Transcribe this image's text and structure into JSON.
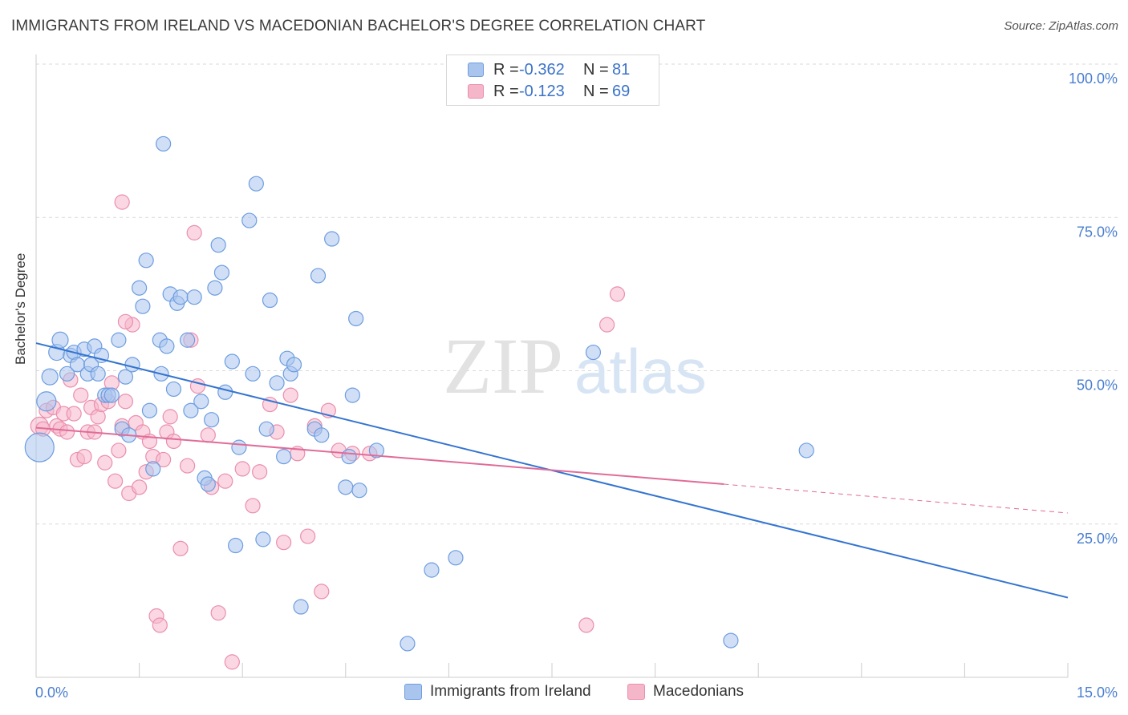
{
  "title": "IMMIGRANTS FROM IRELAND VS MACEDONIAN BACHELOR'S DEGREE CORRELATION CHART",
  "source": "Source: ZipAtlas.com",
  "watermark": {
    "zip": "ZIP",
    "atlas": "atlas"
  },
  "legend": {
    "r_label": "R =",
    "n_label": "N =",
    "entries": [
      {
        "r": "-0.362",
        "n": "81"
      },
      {
        "r": "-0.123",
        "n": "69"
      }
    ]
  },
  "colors": {
    "blue_fill": "#a9c5ee",
    "blue_stroke": "#6d9de0",
    "blue_line": "#3474d0",
    "pink_fill": "#f6b6ca",
    "pink_stroke": "#ea8fad",
    "pink_line": "#e06c98",
    "tick_label": "#4a7fd0",
    "grid": "#d9d9d9"
  },
  "chart_data": {
    "type": "scatter",
    "title": "IMMIGRANTS FROM IRELAND VS MACEDONIAN BACHELOR'S DEGREE CORRELATION CHART",
    "xlabel": "",
    "ylabel": "Bachelor's Degree",
    "xlim": [
      0,
      15
    ],
    "ylim": [
      0,
      100
    ],
    "x_tick_labels": [
      "0.0%",
      "15.0%"
    ],
    "y_ticks": [
      25,
      50,
      75,
      100
    ],
    "y_tick_labels": [
      "25.0%",
      "50.0%",
      "75.0%",
      "100.0%"
    ],
    "grid": true,
    "legend_position": "top-center",
    "series": [
      {
        "name": "Immigrants from Ireland",
        "r": -0.362,
        "n": 81,
        "trend": {
          "x": [
            0,
            15
          ],
          "y": [
            54.5,
            13
          ]
        },
        "points": [
          [
            0.05,
            37.5,
            18
          ],
          [
            0.15,
            45,
            12
          ],
          [
            0.2,
            49,
            10
          ],
          [
            0.3,
            53,
            10
          ],
          [
            0.35,
            55,
            10
          ],
          [
            0.45,
            49.5,
            9
          ],
          [
            0.5,
            52.5,
            9
          ],
          [
            0.55,
            53,
            9
          ],
          [
            0.6,
            51,
            9
          ],
          [
            0.7,
            53.5,
            9
          ],
          [
            0.75,
            49.5,
            9
          ],
          [
            0.8,
            51,
            9
          ],
          [
            0.85,
            54,
            9
          ],
          [
            0.9,
            49.5,
            9
          ],
          [
            0.95,
            52.5,
            9
          ],
          [
            1.0,
            46,
            9
          ],
          [
            1.05,
            46,
            9
          ],
          [
            1.1,
            46,
            9
          ],
          [
            1.2,
            55,
            9
          ],
          [
            1.25,
            40.5,
            9
          ],
          [
            1.3,
            49,
            9
          ],
          [
            1.35,
            39.5,
            9
          ],
          [
            1.4,
            51,
            9
          ],
          [
            1.5,
            63.5,
            9
          ],
          [
            1.55,
            60.5,
            9
          ],
          [
            1.6,
            68,
            9
          ],
          [
            1.65,
            43.5,
            9
          ],
          [
            1.7,
            34,
            9
          ],
          [
            1.8,
            55,
            9
          ],
          [
            1.82,
            49.5,
            9
          ],
          [
            1.85,
            87,
            9
          ],
          [
            1.9,
            54,
            9
          ],
          [
            1.95,
            62.5,
            9
          ],
          [
            2.0,
            47,
            9
          ],
          [
            2.05,
            61,
            9
          ],
          [
            2.1,
            62,
            9
          ],
          [
            2.2,
            55,
            9
          ],
          [
            2.25,
            43.5,
            9
          ],
          [
            2.3,
            62,
            9
          ],
          [
            2.4,
            45,
            9
          ],
          [
            2.45,
            32.5,
            9
          ],
          [
            2.5,
            31.5,
            9
          ],
          [
            2.55,
            42,
            9
          ],
          [
            2.6,
            63.5,
            9
          ],
          [
            2.65,
            70.5,
            9
          ],
          [
            2.7,
            66,
            9
          ],
          [
            2.75,
            46.5,
            9
          ],
          [
            2.85,
            51.5,
            9
          ],
          [
            2.9,
            21.5,
            9
          ],
          [
            2.95,
            37.5,
            9
          ],
          [
            3.1,
            74.5,
            9
          ],
          [
            3.15,
            49.5,
            9
          ],
          [
            3.2,
            80.5,
            9
          ],
          [
            3.3,
            22.5,
            9
          ],
          [
            3.35,
            40.5,
            9
          ],
          [
            3.4,
            61.5,
            9
          ],
          [
            3.5,
            48,
            9
          ],
          [
            3.6,
            36,
            9
          ],
          [
            3.65,
            52,
            9
          ],
          [
            3.7,
            49.5,
            9
          ],
          [
            3.75,
            51,
            9
          ],
          [
            3.85,
            11.5,
            9
          ],
          [
            4.05,
            40.5,
            9
          ],
          [
            4.1,
            65.5,
            9
          ],
          [
            4.15,
            39.5,
            9
          ],
          [
            4.3,
            71.5,
            9
          ],
          [
            4.5,
            31,
            9
          ],
          [
            4.55,
            36,
            9
          ],
          [
            4.6,
            46,
            9
          ],
          [
            4.65,
            58.5,
            9
          ],
          [
            4.7,
            30.5,
            9
          ],
          [
            4.95,
            37,
            9
          ],
          [
            5.4,
            5.5,
            9
          ],
          [
            5.75,
            17.5,
            9
          ],
          [
            6.1,
            19.5,
            9
          ],
          [
            8.1,
            53,
            9
          ],
          [
            11.2,
            37,
            9
          ],
          [
            10.1,
            6,
            9
          ]
        ]
      },
      {
        "name": "Macedonians",
        "r": -0.123,
        "n": 69,
        "trend": {
          "x": [
            0,
            10
          ],
          "y": [
            40.7,
            31.5
          ]
        },
        "trend_ext": {
          "x": [
            10,
            15
          ],
          "y": [
            31.5,
            26.8
          ]
        },
        "points": [
          [
            0.05,
            41,
            11
          ],
          [
            0.1,
            40.5,
            9
          ],
          [
            0.15,
            43.5,
            9
          ],
          [
            0.25,
            44,
            9
          ],
          [
            0.3,
            41,
            9
          ],
          [
            0.35,
            40.5,
            9
          ],
          [
            0.4,
            43,
            9
          ],
          [
            0.45,
            40,
            9
          ],
          [
            0.5,
            48.5,
            9
          ],
          [
            0.55,
            43,
            9
          ],
          [
            0.6,
            35.5,
            9
          ],
          [
            0.65,
            46,
            9
          ],
          [
            0.7,
            36,
            9
          ],
          [
            0.75,
            40,
            9
          ],
          [
            0.8,
            44,
            9
          ],
          [
            0.85,
            40,
            9
          ],
          [
            0.9,
            42.5,
            9
          ],
          [
            0.95,
            44.5,
            9
          ],
          [
            1.0,
            35,
            9
          ],
          [
            1.05,
            45,
            9
          ],
          [
            1.1,
            48,
            9
          ],
          [
            1.15,
            32,
            9
          ],
          [
            1.2,
            37,
            9
          ],
          [
            1.25,
            41,
            9
          ],
          [
            1.3,
            45,
            9
          ],
          [
            1.35,
            30,
            9
          ],
          [
            1.4,
            57.5,
            9
          ],
          [
            1.45,
            41.5,
            9
          ],
          [
            1.5,
            31,
            9
          ],
          [
            1.55,
            40,
            9
          ],
          [
            1.6,
            33.5,
            9
          ],
          [
            1.65,
            38.5,
            9
          ],
          [
            1.7,
            36,
            9
          ],
          [
            1.75,
            10,
            9
          ],
          [
            1.8,
            8.5,
            9
          ],
          [
            1.85,
            35.5,
            9
          ],
          [
            1.9,
            40,
            9
          ],
          [
            1.95,
            42.5,
            9
          ],
          [
            2.0,
            38.5,
            9
          ],
          [
            2.1,
            21,
            9
          ],
          [
            2.2,
            34.5,
            9
          ],
          [
            2.25,
            55,
            9
          ],
          [
            2.3,
            72.5,
            9
          ],
          [
            2.35,
            47.5,
            9
          ],
          [
            2.5,
            39.5,
            9
          ],
          [
            2.55,
            31,
            9
          ],
          [
            2.65,
            10.5,
            9
          ],
          [
            2.75,
            32,
            9
          ],
          [
            2.85,
            2.5,
            9
          ],
          [
            3.0,
            34,
            9
          ],
          [
            3.15,
            28,
            9
          ],
          [
            3.25,
            33.5,
            9
          ],
          [
            3.4,
            44.5,
            9
          ],
          [
            3.5,
            40,
            9
          ],
          [
            3.6,
            22,
            9
          ],
          [
            3.7,
            46,
            9
          ],
          [
            3.8,
            36.5,
            9
          ],
          [
            3.95,
            23,
            9
          ],
          [
            4.05,
            41,
            9
          ],
          [
            4.15,
            14,
            9
          ],
          [
            4.25,
            43.5,
            9
          ],
          [
            4.4,
            37,
            9
          ],
          [
            4.6,
            36.5,
            9
          ],
          [
            4.85,
            36.5,
            9
          ],
          [
            1.25,
            77.5,
            9
          ],
          [
            1.3,
            58,
            9
          ],
          [
            8.0,
            8.5,
            9
          ],
          [
            8.3,
            57.5,
            9
          ],
          [
            8.45,
            62.5,
            9
          ]
        ]
      }
    ]
  }
}
